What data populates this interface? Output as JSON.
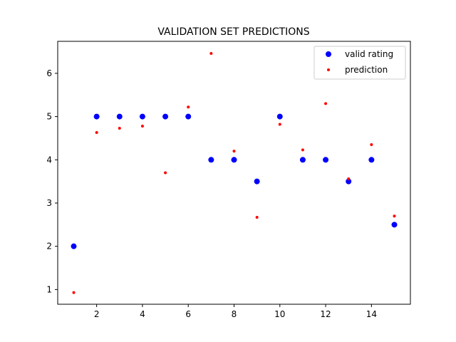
{
  "chart_data": {
    "type": "scatter",
    "title": "VALIDATION SET PREDICTIONS",
    "xlabel": "",
    "ylabel": "",
    "xlim": [
      0.3,
      15.7
    ],
    "ylim": [
      0.66,
      6.74
    ],
    "xticks": [
      2,
      4,
      6,
      8,
      10,
      12,
      14
    ],
    "yticks": [
      1,
      2,
      3,
      4,
      5,
      6
    ],
    "grid": false,
    "legend_position": "upper right",
    "x": [
      1,
      2,
      3,
      4,
      5,
      6,
      7,
      8,
      9,
      10,
      11,
      12,
      13,
      14,
      15
    ],
    "series": [
      {
        "name": "valid rating",
        "color": "#0000ff",
        "marker": "large-dot",
        "values": [
          2.0,
          5.0,
          5.0,
          5.0,
          5.0,
          5.0,
          4.0,
          4.0,
          3.5,
          5.0,
          4.0,
          4.0,
          3.5,
          4.0,
          2.5
        ]
      },
      {
        "name": "prediction",
        "color": "#ff0000",
        "marker": "small-dot",
        "values": [
          0.93,
          4.63,
          4.73,
          4.78,
          3.7,
          5.22,
          6.46,
          4.2,
          2.67,
          4.82,
          4.23,
          5.3,
          3.56,
          4.35,
          2.7
        ]
      }
    ]
  }
}
